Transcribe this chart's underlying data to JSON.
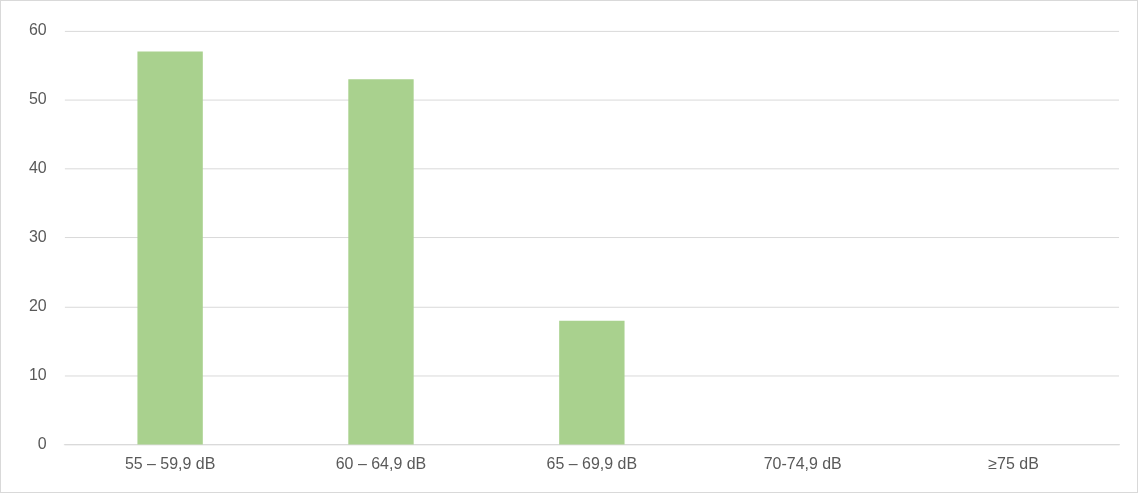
{
  "chart_data": {
    "type": "bar",
    "categories": [
      "55 – 59,9 dB",
      "60 – 64,9 dB",
      "65 – 69,9 dB",
      "70-74,9 dB",
      "≥75 dB"
    ],
    "values": [
      57,
      53,
      18,
      0,
      0
    ],
    "color": "#a9d18e",
    "ylim": [
      0,
      60
    ],
    "yticks": [
      0,
      10,
      20,
      30,
      40,
      50,
      60
    ],
    "grid": "y",
    "legend": false
  }
}
